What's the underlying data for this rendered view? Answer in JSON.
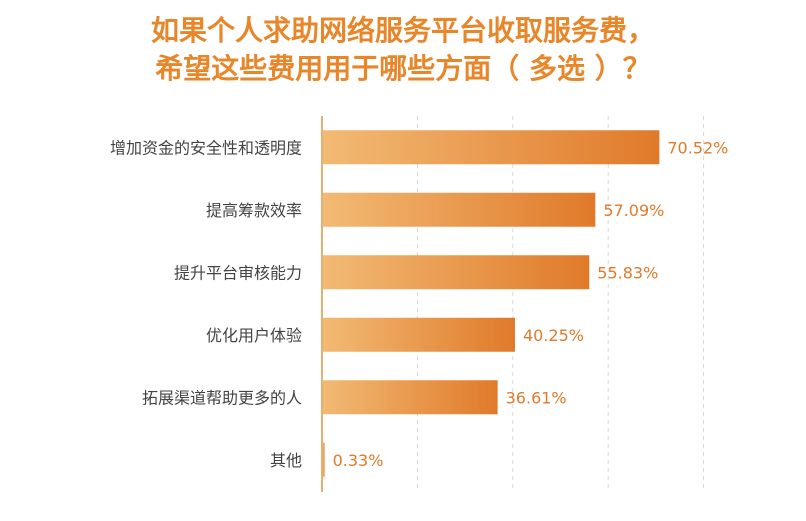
{
  "title_lines": [
    "如果个人求助网络服务平台收取服务费，",
    "希望这些费用用于哪些方面（ 多选 ）？"
  ],
  "colors": {
    "accent": "#E8862A",
    "bar_light": "#F2BA74",
    "bar_dark": "#E07A2A",
    "axis": "#E8B070",
    "grid": "#D9D9D9",
    "label": "#E07A2A"
  },
  "chart_data": {
    "type": "bar",
    "orientation": "horizontal",
    "title": "如果个人求助网络服务平台收取服务费，希望这些费用用于哪些方面（ 多选 ）？",
    "categories": [
      "增加资金的安全性和透明度",
      "提高筹款效率",
      "提升平台审核能力",
      "优化用户体验",
      "拓展渠道帮助更多的人",
      "其他"
    ],
    "values": [
      70.52,
      57.09,
      55.83,
      40.25,
      36.61,
      0.33
    ],
    "value_labels": [
      "70.52%",
      "57.09%",
      "55.83%",
      "40.25%",
      "36.61%",
      "0.33%"
    ],
    "xlim": [
      0,
      80
    ],
    "grid": true,
    "legend": "none"
  }
}
